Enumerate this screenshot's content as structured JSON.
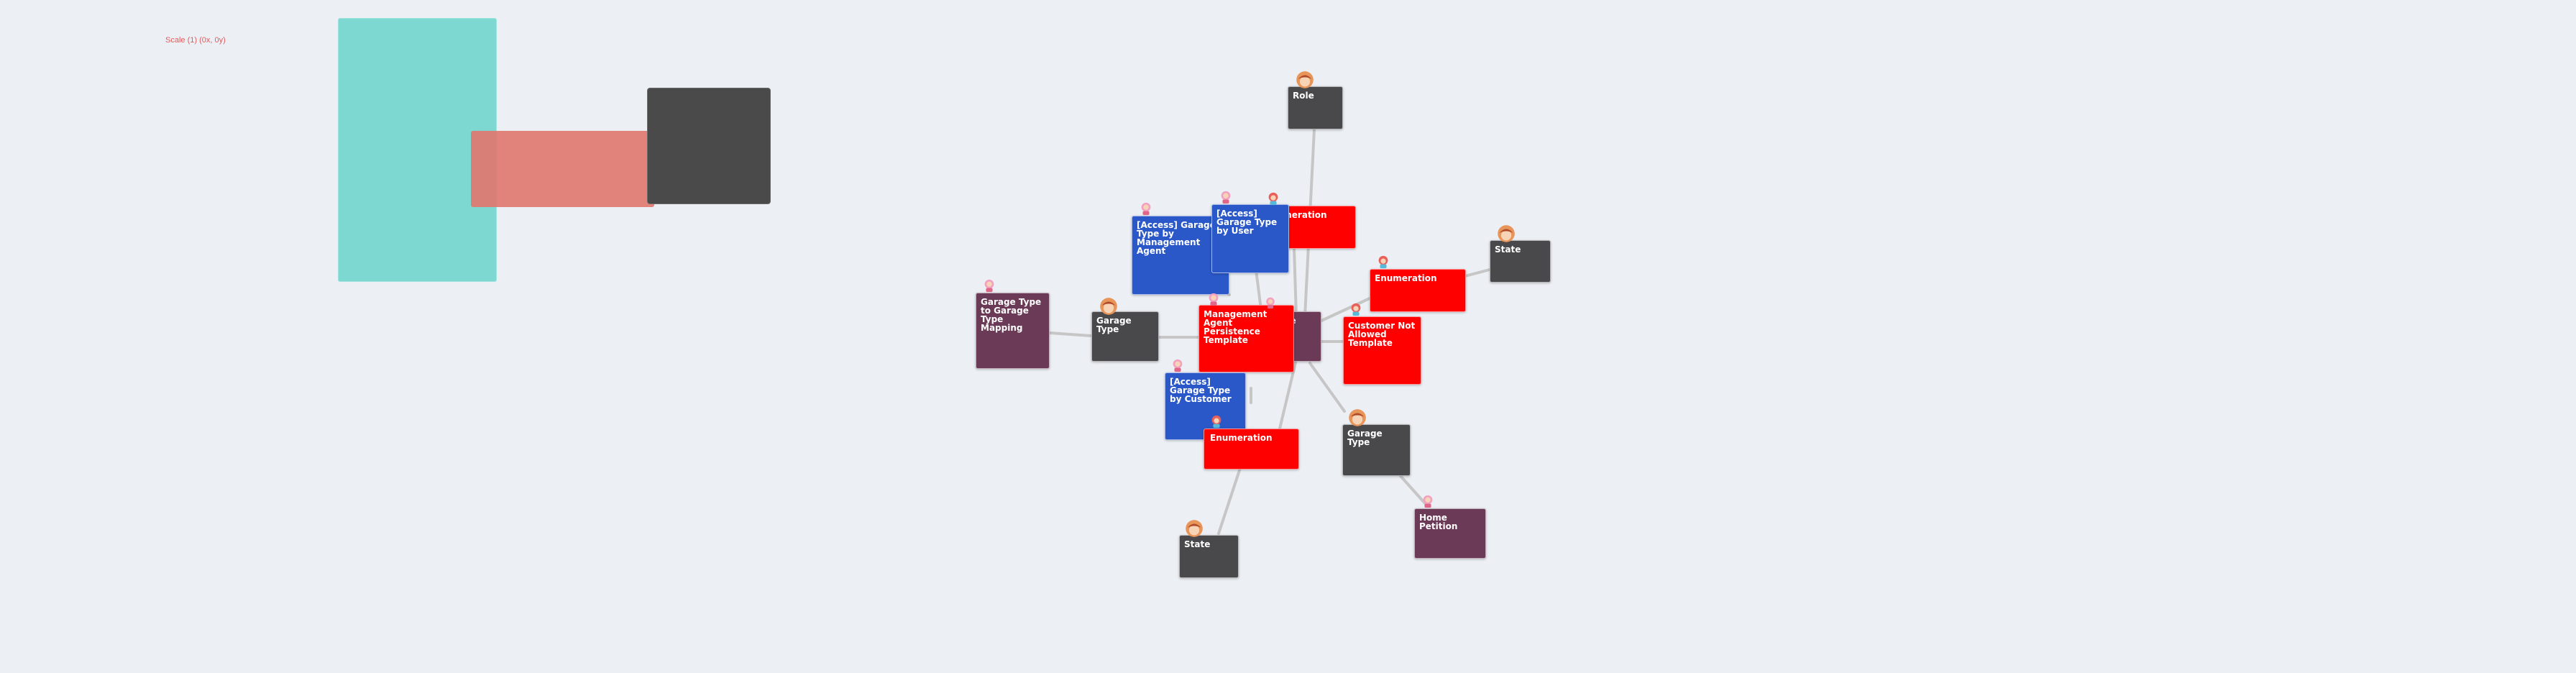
{
  "canvas": {
    "scale_label": "Scale (1) (0x, 0y)"
  },
  "colors": {
    "background": "#eceff4",
    "teal_swatch": "#7ed8d2",
    "salmon_swatch": "#e07870",
    "dark_swatch": "#4a4a4b",
    "entity_dark": "#49494b",
    "enumeration_red": "#fe0000",
    "access_blue": "#2a58c8",
    "mapping_plum": "#6b3a56",
    "edge": "#c6c6c6"
  },
  "nodes": {
    "role": "Role",
    "state_right": "State",
    "enum_top": "Enumeration",
    "access_mgmt_agent": "[Access] Garage Type by Management Agent",
    "access_user": "[Access] Garage Type by User",
    "enum_right": "Enumeration",
    "garage_mapping": "Garage Type to Garage Type Mapping",
    "garage_type_left": "Garage Type",
    "mgmt_template": "Management Agent Persistence Template",
    "garage_type_center": "Garage Type",
    "customer_not_allowed": "Customer Not Allowed Template",
    "access_customer": "[Access] Garage Type by Customer",
    "enum_bottom": "Enumeration",
    "garage_type_right": "Garage Type",
    "home_petition": "Home Petition",
    "state_bottom": "State"
  }
}
